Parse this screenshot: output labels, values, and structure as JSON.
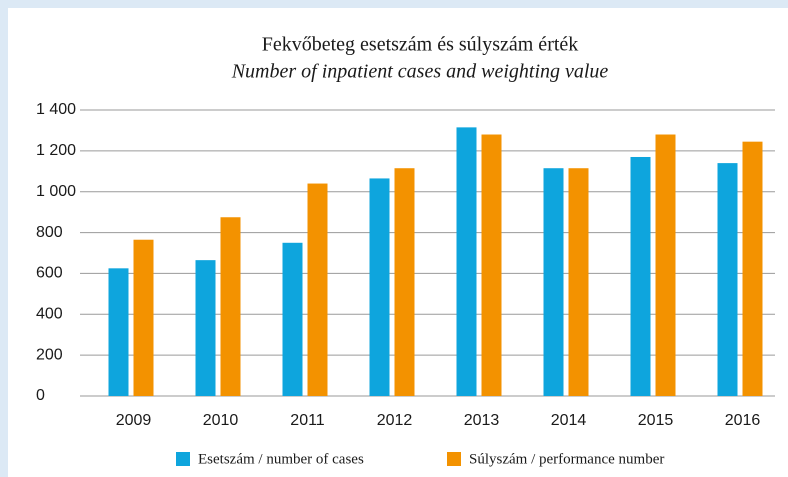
{
  "chart_data": {
    "type": "bar",
    "title": "Fekvőbeteg esetszám és súlyszám érték",
    "subtitle": "Number of inpatient cases and weighting value",
    "categories": [
      "2009",
      "2010",
      "2011",
      "2012",
      "2013",
      "2014",
      "2015",
      "2016"
    ],
    "series": [
      {
        "name": "Esetszám / number of cases",
        "color": "#0ea5dd",
        "values": [
          625,
          665,
          750,
          1065,
          1315,
          1115,
          1170,
          1140
        ]
      },
      {
        "name": "Súlyszám / performance number",
        "color": "#f39200",
        "values": [
          765,
          875,
          1040,
          1115,
          1280,
          1115,
          1280,
          1245
        ]
      }
    ],
    "ylim": [
      0,
      1400
    ],
    "yticks": [
      0,
      200,
      400,
      600,
      800,
      {
        "value": 1000,
        "label": "1 000"
      },
      {
        "value": 1200,
        "label": "1 200"
      },
      {
        "value": 1400,
        "label": "1 400"
      }
    ],
    "grid": true
  }
}
